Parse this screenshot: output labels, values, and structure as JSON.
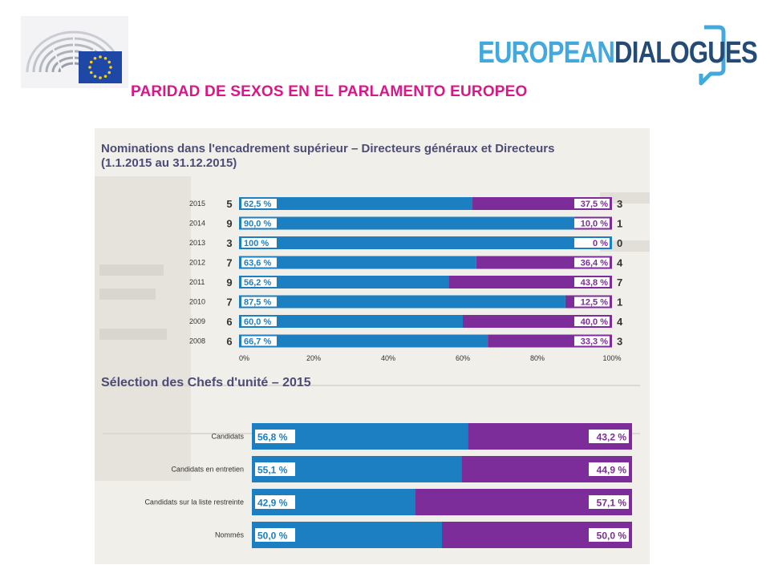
{
  "slide": {
    "title": "PARIDAD DE SEXOS EN EL PARLAMENTO EUROPEO",
    "brand": {
      "part1": "EUROPEAN",
      "part2": "DIALOGUES"
    },
    "logo_left_icon": "european-parliament-hemicycle-and-eu-flag-icon",
    "logo_right_icon": "speech-bubble-icon"
  },
  "colors": {
    "men": "#1c7fc1",
    "women": "#7c2d9a",
    "title": "#d9178a",
    "chart_title": "#4c4c78"
  },
  "chart_data": [
    {
      "type": "bar",
      "orientation": "horizontal",
      "stacked": true,
      "title_line1": "Nominations dans l'encadrement supérieur – Directeurs généraux et Directeurs",
      "title_line2": "(1.1.2015 au 31.12.2015)",
      "categories": [
        "2015",
        "2014",
        "2013",
        "2012",
        "2011",
        "2010",
        "2009",
        "2008"
      ],
      "series": [
        {
          "values": [
            62.5,
            90.0,
            100,
            63.6,
            56.2,
            87.5,
            60.0,
            66.7
          ],
          "labels": [
            "62,5 %",
            "90,0 %",
            "100 %",
            "63,6 %",
            "56,2 %",
            "87,5 %",
            "60,0 %",
            "66,7 %"
          ],
          "counts": [
            "5",
            "9",
            "3",
            "7",
            "9",
            "7",
            "6",
            "6"
          ]
        },
        {
          "values": [
            37.5,
            10.0,
            0,
            36.4,
            43.8,
            12.5,
            40.0,
            33.3
          ],
          "labels": [
            "37,5 %",
            "10,0 %",
            "0 %",
            "36,4 %",
            "43,8 %",
            "12,5 %",
            "40,0 %",
            "33,3 %"
          ],
          "counts": [
            "3",
            "1",
            "0",
            "4",
            "7",
            "1",
            "4",
            "3"
          ]
        }
      ],
      "xlim": [
        0,
        100
      ],
      "xticks": [
        "0%",
        "20%",
        "40%",
        "60%",
        "80%",
        "100%"
      ]
    },
    {
      "type": "bar",
      "orientation": "horizontal",
      "stacked": true,
      "title": "Sélection des Chefs d'unité – 2015",
      "categories": [
        "Candidats",
        "Candidats en entretien",
        "Candidats sur la liste restreinte",
        "Nommés"
      ],
      "series": [
        {
          "values": [
            56.8,
            55.1,
            42.9,
            50.0
          ],
          "labels": [
            "56,8 %",
            "55,1 %",
            "42,9 %",
            "50,0 %"
          ]
        },
        {
          "values": [
            43.2,
            44.9,
            57.1,
            50.0
          ],
          "labels": [
            "43,2 %",
            "44,9 %",
            "57,1 %",
            "50,0 %"
          ]
        }
      ],
      "xlim": [
        0,
        100
      ]
    }
  ]
}
